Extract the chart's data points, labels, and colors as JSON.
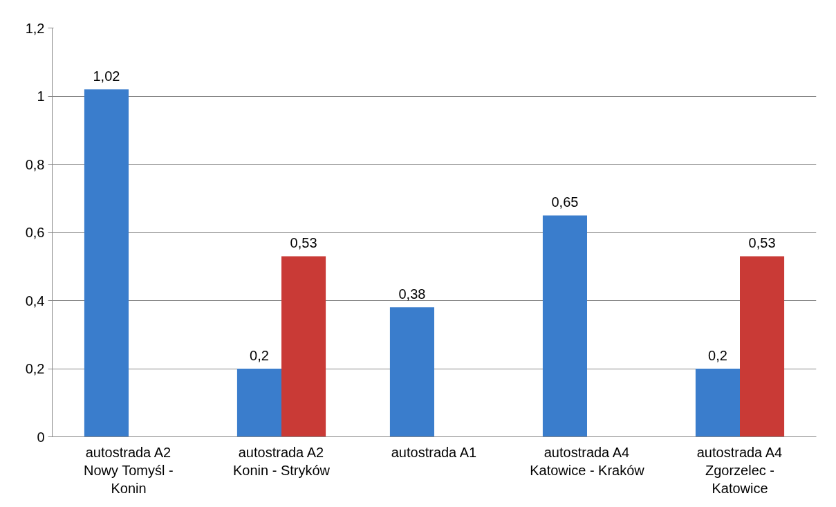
{
  "chart_data": {
    "type": "bar",
    "categories": [
      "autostrada A2 Nowy Tomyśl - Konin",
      "autostrada A2 Konin - Stryków",
      "autostrada A1",
      "autostrada A4 Katowice - Kraków",
      "autostrada A4 Zgorzelec - Katowice"
    ],
    "series": [
      {
        "color": "#3a7dcc",
        "values": [
          1.02,
          0.2,
          0.38,
          0.65,
          0.2
        ],
        "value_labels": [
          "1,02",
          "0,2",
          "0,38",
          "0,65",
          "0,2"
        ]
      },
      {
        "color": "#c93a36",
        "values": [
          null,
          0.53,
          null,
          null,
          0.53
        ],
        "value_labels": [
          null,
          "0,53",
          null,
          null,
          "0,53"
        ]
      }
    ],
    "ylim": [
      0,
      1.2
    ],
    "yticks": [
      0,
      {
        "value": 0.2,
        "label": "0,2"
      },
      {
        "value": 0.4,
        "label": "0,4"
      },
      {
        "value": 0.6,
        "label": "0,6"
      },
      {
        "value": 0.8,
        "label": "0,8"
      },
      1,
      {
        "value": 1.2,
        "label": "1,2"
      }
    ],
    "grid": "y"
  }
}
